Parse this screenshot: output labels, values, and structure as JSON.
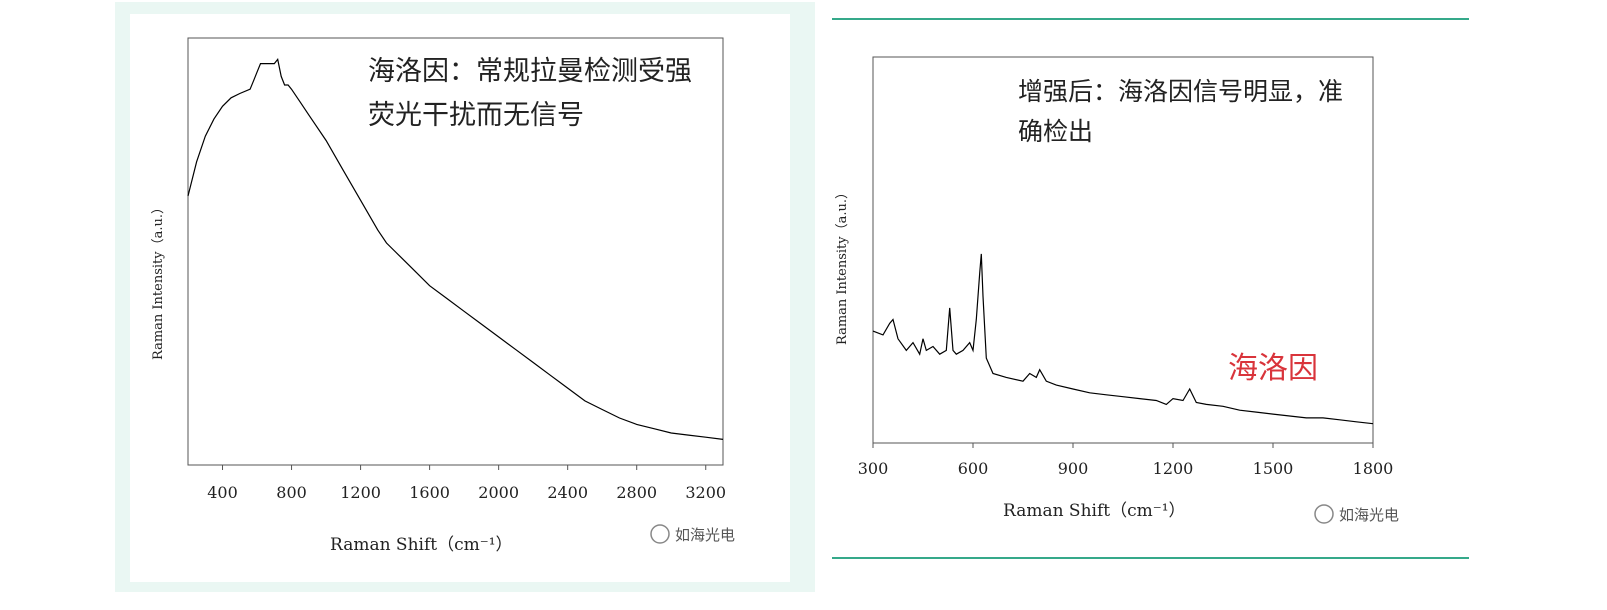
{
  "colors": {
    "panel_bg": "#eaf7f3",
    "divider": "#35a98a",
    "line": "#000000",
    "highlight": "#d9343b"
  },
  "chart_data": [
    {
      "type": "line",
      "xlabel": "Raman Shift（cm⁻¹）",
      "ylabel": "Raman Intensity（a.u.）",
      "xlim": [
        200,
        3300
      ],
      "ylim": [
        0,
        100
      ],
      "xticks": [
        "400",
        "800",
        "1200",
        "1600",
        "2000",
        "2400",
        "2800",
        "3200"
      ],
      "annotation": [
        "海洛因：常规拉曼检测受强",
        "荧光干扰而无信号"
      ],
      "watermark": "如海光电",
      "series": [
        {
          "x": [
            200,
            250,
            300,
            350,
            400,
            450,
            500,
            560,
            580,
            600,
            620,
            660,
            700,
            720,
            740,
            760,
            780,
            800,
            850,
            900,
            1000,
            1100,
            1200,
            1300,
            1350,
            1400,
            1500,
            1600,
            1700,
            1800,
            1900,
            2000,
            2100,
            2200,
            2300,
            2400,
            2500,
            2600,
            2700,
            2800,
            2900,
            3000,
            3100,
            3200,
            3300
          ],
          "y": [
            63,
            71,
            77,
            81,
            84,
            86,
            87,
            88,
            90,
            92,
            94,
            94,
            94,
            95,
            91,
            89,
            89,
            88,
            85,
            82,
            76,
            69,
            62,
            55,
            52,
            50,
            46,
            42,
            39,
            36,
            33,
            30,
            27,
            24,
            21,
            18,
            15,
            13,
            11,
            9.5,
            8.5,
            7.5,
            7,
            6.5,
            6
          ]
        }
      ]
    },
    {
      "type": "line",
      "xlabel": "Raman Shift（cm⁻¹）",
      "ylabel": "Raman Intensity（a.u.）",
      "xlim": [
        300,
        1800
      ],
      "ylim": [
        0,
        100
      ],
      "xticks": [
        "300",
        "600",
        "900",
        "1200",
        "1500",
        "1800"
      ],
      "annotation": [
        "增强后：海洛因信号明显，准",
        "确检出"
      ],
      "label": "海洛因",
      "watermark": "如海光电",
      "series": [
        {
          "x": [
            300,
            330,
            350,
            360,
            375,
            400,
            420,
            440,
            450,
            460,
            480,
            500,
            520,
            530,
            540,
            550,
            570,
            590,
            600,
            610,
            620,
            625,
            630,
            640,
            660,
            700,
            750,
            770,
            790,
            800,
            820,
            850,
            900,
            950,
            1000,
            1050,
            1100,
            1150,
            1180,
            1200,
            1230,
            1250,
            1270,
            1300,
            1350,
            1400,
            1450,
            1500,
            1550,
            1600,
            1650,
            1700,
            1750,
            1800
          ],
          "y": [
            29,
            28,
            31,
            32,
            27,
            24,
            26,
            23,
            27,
            24,
            25,
            23,
            24,
            35,
            24,
            23,
            24,
            26,
            24,
            32,
            44,
            49,
            38,
            22,
            18,
            17,
            16,
            18,
            17,
            19,
            16,
            15,
            14,
            13,
            12.5,
            12,
            11.5,
            11,
            10,
            11.5,
            11,
            14,
            10.5,
            10,
            9.5,
            8.5,
            8,
            7.5,
            7,
            6.5,
            6.5,
            6,
            5.5,
            5
          ]
        }
      ]
    }
  ]
}
